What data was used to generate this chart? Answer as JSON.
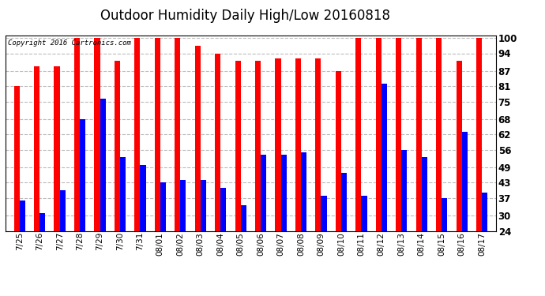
{
  "title": "Outdoor Humidity Daily High/Low 20160818",
  "copyright": "Copyright 2016 Cartronics.com",
  "dates": [
    "7/25",
    "7/26",
    "7/27",
    "7/28",
    "7/29",
    "7/30",
    "7/31",
    "08/01",
    "08/02",
    "08/03",
    "08/04",
    "08/05",
    "08/06",
    "08/07",
    "08/08",
    "08/09",
    "08/10",
    "08/11",
    "08/12",
    "08/13",
    "08/14",
    "08/15",
    "08/16",
    "08/17"
  ],
  "high": [
    81,
    89,
    89,
    100,
    100,
    91,
    100,
    100,
    100,
    97,
    94,
    91,
    91,
    92,
    92,
    92,
    87,
    100,
    100,
    100,
    100,
    100,
    91,
    100
  ],
  "low": [
    36,
    31,
    40,
    68,
    76,
    53,
    50,
    43,
    44,
    44,
    41,
    34,
    54,
    54,
    55,
    38,
    47,
    38,
    82,
    56,
    53,
    37,
    63,
    39
  ],
  "ylim": [
    24,
    101
  ],
  "yticks": [
    24,
    30,
    37,
    43,
    49,
    56,
    62,
    68,
    75,
    81,
    87,
    94,
    100
  ],
  "bg_color": "#ffffff",
  "high_color": "#ff0000",
  "low_color": "#0000ff",
  "grid_color": "#bbbbbb",
  "title_fontsize": 12,
  "bar_width": 0.28
}
